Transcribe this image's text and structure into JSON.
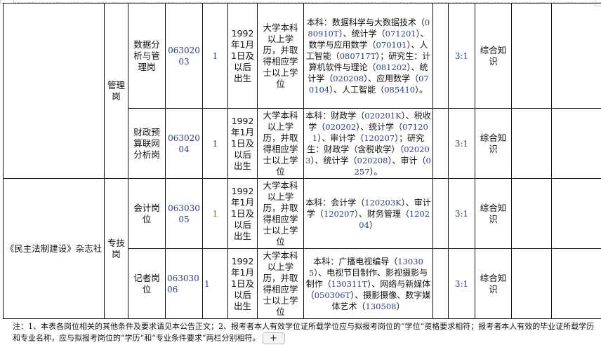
{
  "rows": [
    {
      "category": "管理岗",
      "position": "数据分析与管理岗",
      "code": "06302003",
      "count": "1",
      "age": "1992年1月1日及以后出生",
      "education": "大学本科以上学历，并取得相应学士以上学位",
      "major_parts": [
        "本科：数据科学与大数据技术（",
        "080910T",
        "）、统计学（",
        "071201",
        "）、数学与应用数学（",
        "070101",
        "）、人工智能（",
        "080717T",
        "）；研究生：计算机软件与理论（",
        "081202",
        "）、统计学（",
        "020208",
        "）、应用数学（",
        "070104",
        "）、人工智能（",
        "085410",
        "）。"
      ],
      "ratio": "3:1",
      "exam": "综合知识"
    },
    {
      "category": "",
      "position": "财政预算联网分析岗",
      "code": "06302004",
      "count": "1",
      "age": "1992年1月1日及以后出生",
      "education": "大学本科以上学历，并取得相应学士以上学位",
      "major_parts": [
        "本科：财政学（",
        "020201K",
        "）、税收学（",
        "020202",
        "）、统计学（",
        "071201",
        "）、审计学（",
        "120207",
        "）；研究生：财政学（含税收学）（",
        "020203",
        "）、统计学（",
        "020208",
        "）、审计（",
        "0257",
        "）。"
      ],
      "ratio": "3:1",
      "exam": "综合知识"
    },
    {
      "unit": "《民主法制建设》杂志社",
      "category": "专技岗",
      "position": "会计岗位",
      "code": "06303005",
      "count": "1",
      "age": "1992年1月1日及以后出生",
      "education": "大学本科以上学历，并取得相应学士以上学位",
      "major_parts": [
        "本科：会计学（",
        "120203K",
        "）、审计学（",
        "120207",
        "）、财务管理（",
        "120204",
        "）"
      ],
      "ratio": "3:1",
      "exam": "综合知识"
    },
    {
      "position": "记者岗位",
      "code": "06303006",
      "count": "1",
      "age": "1992年1月1日及以后出生",
      "education": "大学本科以上学历，并取得相应学士以上学位",
      "major_parts": [
        "本科：广播电视编导（",
        "130305",
        "）、电视节目制作、影视摄影与制作（",
        "130311T",
        "）、网络与新媒体（",
        "050306T",
        "）、摄影摄像、数字媒体艺术（",
        "130508",
        "）"
      ],
      "ratio": "3:1",
      "exam": "综合知识"
    }
  ],
  "note": "注：1、本表各岗位相关的其他条件及要求请见本公告正文；2、报考者本人有效学位证所载学位应与拟报考岗位的“学位”资格要求相符；报考者本人有效的毕业证所载学历和专业名称，应与拟报考岗位的“学历”和“专业条件要求”两栏分别相符。",
  "add_button": "+"
}
